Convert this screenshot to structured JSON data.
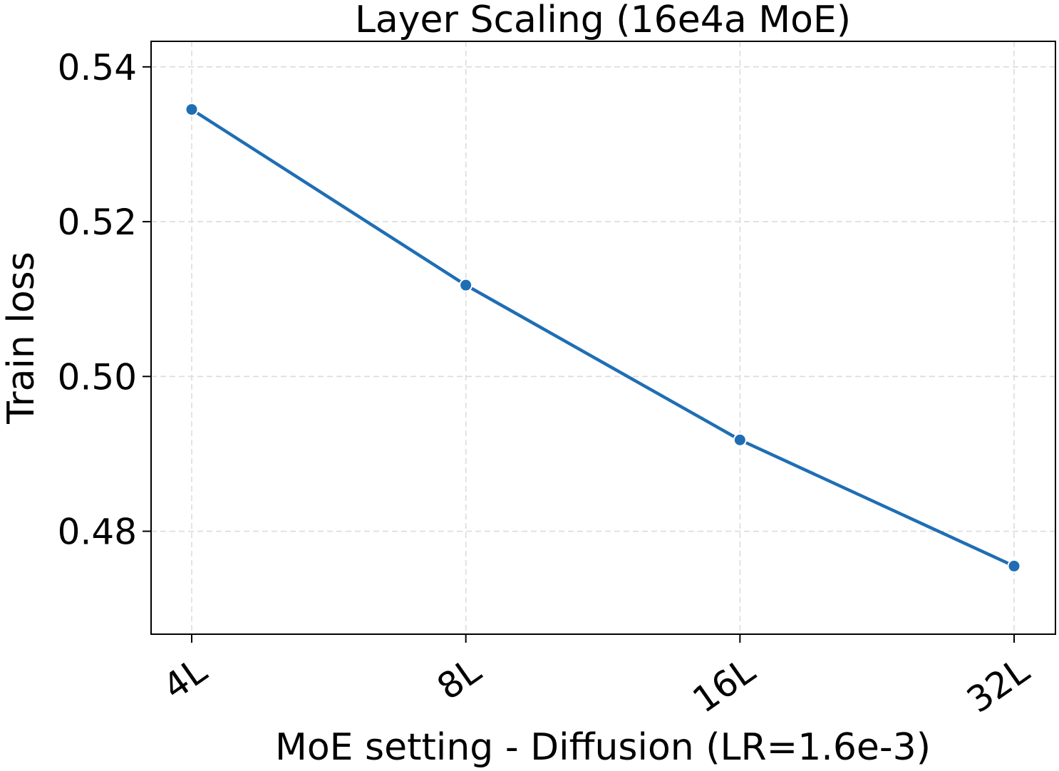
{
  "chart_data": {
    "type": "line",
    "title": "Layer Scaling (16e4a MoE)",
    "xlabel": "MoE setting - Diffusion (LR=1.6e-3)",
    "ylabel": "Train loss",
    "categories": [
      "4L",
      "8L",
      "16L",
      "32L"
    ],
    "series": [
      {
        "values": [
          0.5345,
          0.5118,
          0.4918,
          0.4755
        ],
        "color": "#1f6eb4",
        "marker": "circle"
      }
    ],
    "ylim": [
      0.4667,
      0.5433
    ],
    "yticks": [
      0.48,
      0.5,
      0.52,
      0.54
    ],
    "ytick_labels": [
      "0.48",
      "0.50",
      "0.52",
      "0.54"
    ],
    "grid": true,
    "grid_style": "dashed",
    "legend": "none"
  }
}
